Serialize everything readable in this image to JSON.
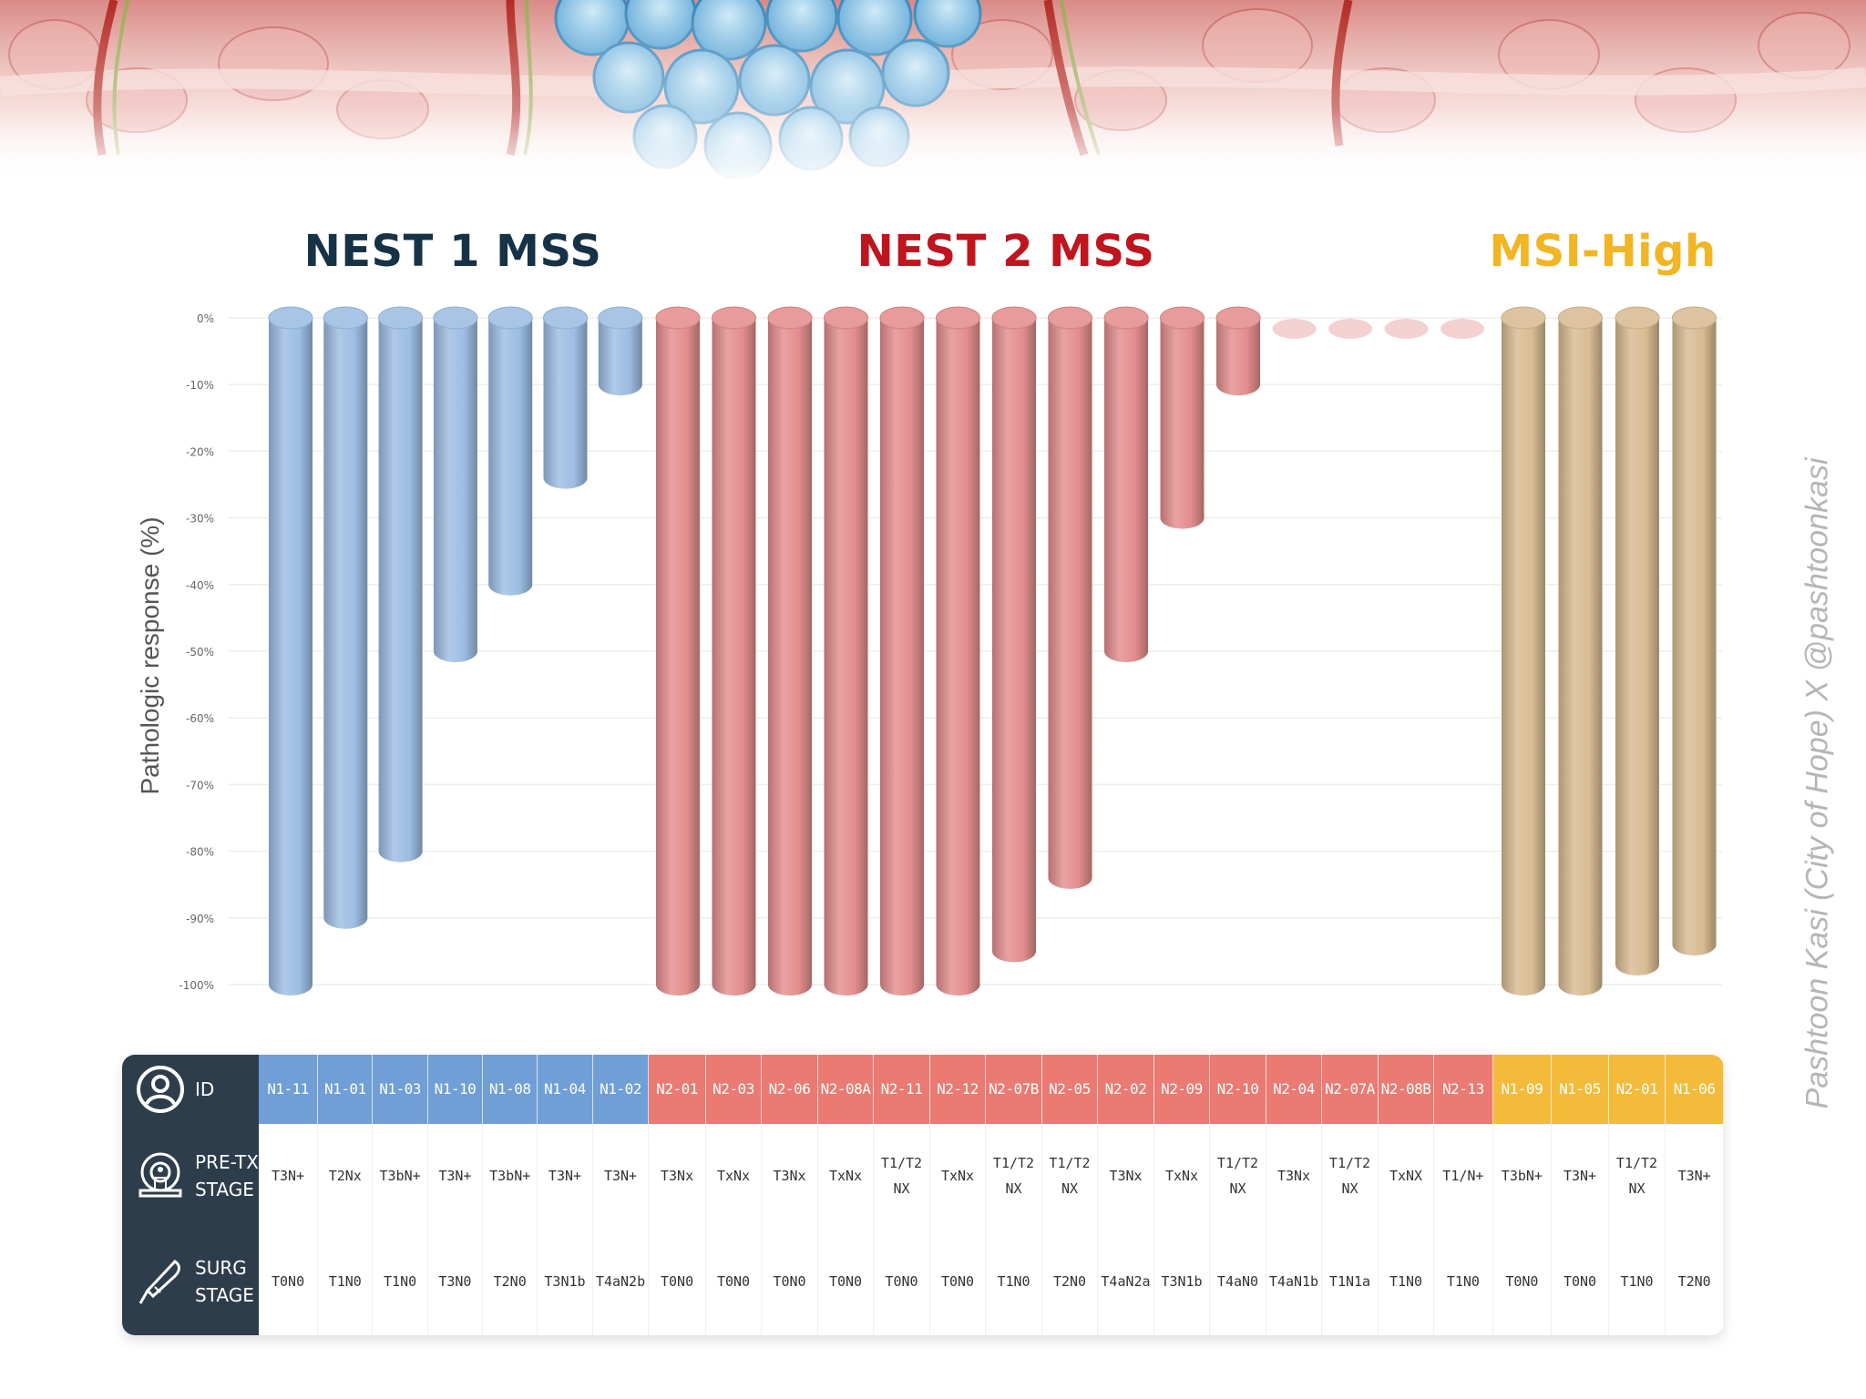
{
  "groups": [
    {
      "key": "nest1",
      "label": "NEST 1 MSS",
      "color": "#163246"
    },
    {
      "key": "nest2",
      "label": "NEST 2 MSS",
      "color": "#c0141e"
    },
    {
      "key": "msi",
      "label": "MSI-High",
      "color": "#f2b523"
    }
  ],
  "colors": {
    "nest1_bar": "#9dbde3",
    "nest1_cell": "#6f9fd6",
    "nest2_bar": "#e48d8d",
    "nest2_cell": "#ea7a72",
    "msi_bar": "#d8bb92",
    "msi_cell": "#f4bb3a",
    "table_header": "#2e3d4b"
  },
  "y_axis_label": "Pathologic response (%)",
  "credit": "Pashtoon Kasi (City of Hope) X @pashtoonkasi",
  "table": {
    "row_headers": {
      "id": "ID",
      "pre_tx": "PRE-TX\nSTAGE",
      "surg": "SURG\nSTAGE"
    },
    "row_icons": {
      "id": "person-icon",
      "pre_tx": "scanner-icon",
      "surg": "scalpel-icon"
    }
  },
  "chart_data": {
    "type": "bar",
    "orientation": "downward",
    "ylabel": "Pathologic response (%)",
    "ylim": [
      -100,
      0
    ],
    "yticks": [
      "0%",
      "-10%",
      "-20%",
      "-30%",
      "-40%",
      "-50%",
      "-60%",
      "-70%",
      "-80%",
      "-90%",
      "-100%"
    ],
    "grid": true,
    "patients": [
      {
        "id": "N1-11",
        "group": "nest1",
        "value": -100,
        "pre": "T3N+",
        "surg": "T0N0"
      },
      {
        "id": "N1-01",
        "group": "nest1",
        "value": -90,
        "pre": "T2Nx",
        "surg": "T1N0"
      },
      {
        "id": "N1-03",
        "group": "nest1",
        "value": -80,
        "pre": "T3bN+",
        "surg": "T1N0"
      },
      {
        "id": "N1-10",
        "group": "nest1",
        "value": -50,
        "pre": "T3N+",
        "surg": "T3N0"
      },
      {
        "id": "N1-08",
        "group": "nest1",
        "value": -40,
        "pre": "T3bN+",
        "surg": "T2N0"
      },
      {
        "id": "N1-04",
        "group": "nest1",
        "value": -24,
        "pre": "T3N+",
        "surg": "T3N1b"
      },
      {
        "id": "N1-02",
        "group": "nest1",
        "value": -10,
        "pre": "T3N+",
        "surg": "T4aN2b"
      },
      {
        "id": "N2-01",
        "group": "nest2",
        "value": -100,
        "pre": "T3Nx",
        "surg": "T0N0"
      },
      {
        "id": "N2-03",
        "group": "nest2",
        "value": -100,
        "pre": "TxNx",
        "surg": "T0N0"
      },
      {
        "id": "N2-06",
        "group": "nest2",
        "value": -100,
        "pre": "T3Nx",
        "surg": "T0N0"
      },
      {
        "id": "N2-08A",
        "group": "nest2",
        "value": -100,
        "pre": "TxNx",
        "surg": "T0N0"
      },
      {
        "id": "N2-11",
        "group": "nest2",
        "value": -100,
        "pre": "T1/T2\nNX",
        "surg": "T0N0"
      },
      {
        "id": "N2-12",
        "group": "nest2",
        "value": -100,
        "pre": "TxNx",
        "surg": "T0N0"
      },
      {
        "id": "N2-07B",
        "group": "nest2",
        "value": -95,
        "pre": "T1/T2\nNX",
        "surg": "T1N0"
      },
      {
        "id": "N2-05",
        "group": "nest2",
        "value": -84,
        "pre": "T1/T2\nNX",
        "surg": "T2N0"
      },
      {
        "id": "N2-02",
        "group": "nest2",
        "value": -50,
        "pre": "T3Nx",
        "surg": "T4aN2a"
      },
      {
        "id": "N2-09",
        "group": "nest2",
        "value": -30,
        "pre": "TxNx",
        "surg": "T3N1b"
      },
      {
        "id": "N2-10",
        "group": "nest2",
        "value": -10,
        "pre": "T1/T2\nNX",
        "surg": "T4aN0"
      },
      {
        "id": "N2-04",
        "group": "nest2",
        "value": 0,
        "pre": "T3Nx",
        "surg": "T4aN1b"
      },
      {
        "id": "N2-07A",
        "group": "nest2",
        "value": 0,
        "pre": "T1/T2\nNX",
        "surg": "T1N1a"
      },
      {
        "id": "N2-08B",
        "group": "nest2",
        "value": 0,
        "pre": "TxNX",
        "surg": "T1N0"
      },
      {
        "id": "N2-13",
        "group": "nest2",
        "value": 0,
        "pre": "T1/N+",
        "surg": "T1N0"
      },
      {
        "id": "N1-09",
        "group": "msi",
        "value": -100,
        "pre": "T3bN+",
        "surg": "T0N0"
      },
      {
        "id": "N1-05",
        "group": "msi",
        "value": -100,
        "pre": "T3N+",
        "surg": "T0N0"
      },
      {
        "id": "N2-01",
        "group": "msi",
        "value": -97,
        "pre": "T1/T2\nNX",
        "surg": "T1N0"
      },
      {
        "id": "N1-06",
        "group": "msi",
        "value": -94,
        "pre": "T3N+",
        "surg": "T2N0"
      }
    ]
  }
}
